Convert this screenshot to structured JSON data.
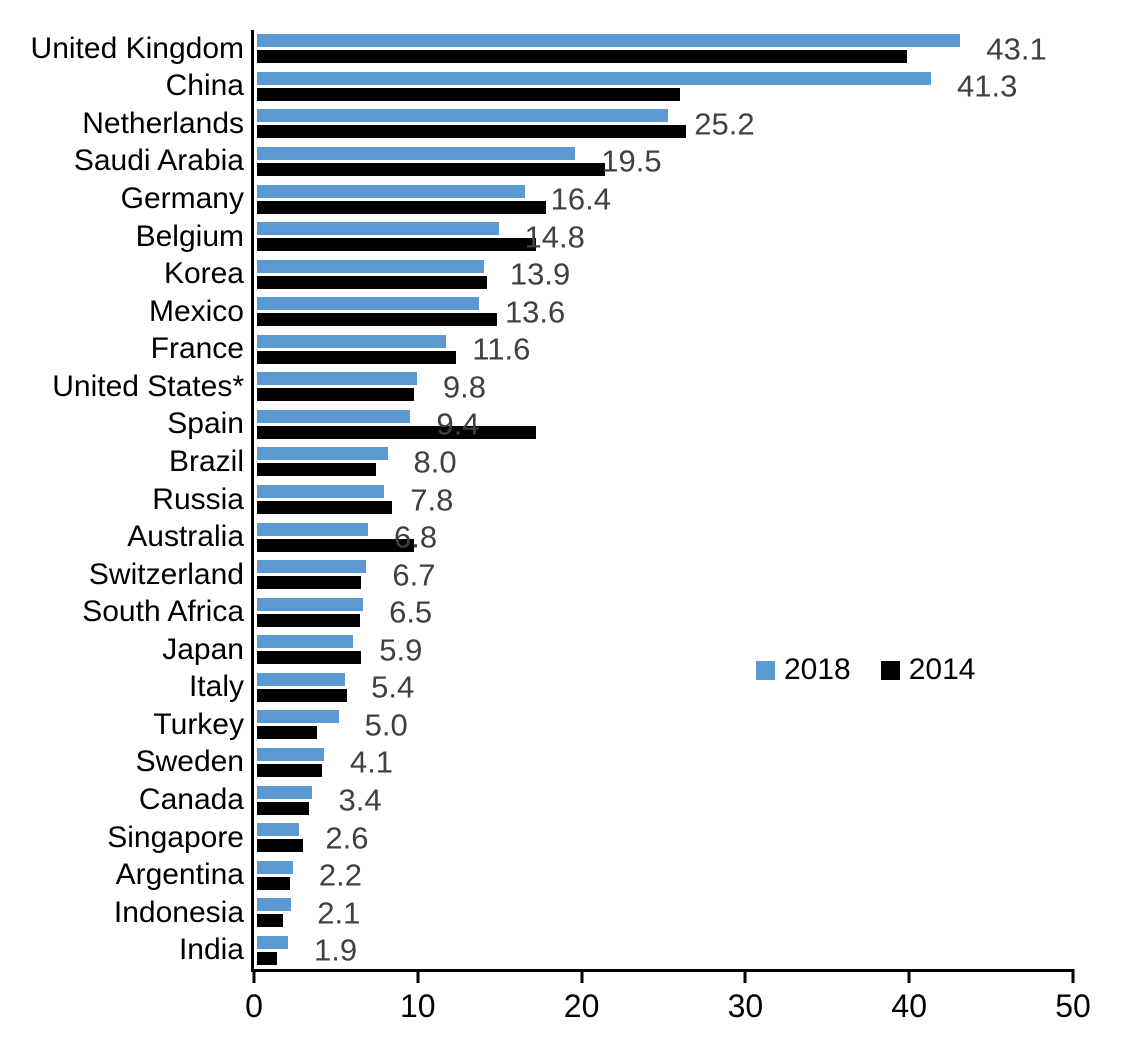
{
  "chart_data": {
    "type": "bar",
    "orientation": "horizontal",
    "title": "",
    "xlabel": "",
    "ylabel": "",
    "xlim": [
      0,
      50
    ],
    "x_ticks": [
      "0",
      "10",
      "20",
      "30",
      "40",
      "50"
    ],
    "grid": false,
    "legend_position": "middle-right",
    "categories": [
      "United Kingdom",
      "China",
      "Netherlands",
      "Saudi Arabia",
      "Germany",
      "Belgium",
      "Korea",
      "Mexico",
      "France",
      "United States*",
      "Spain",
      "Brazil",
      "Russia",
      "Australia",
      "Switzerland",
      "South Africa",
      "Japan",
      "Italy",
      "Turkey",
      "Sweden",
      "Canada",
      "Singapore",
      "Argentina",
      "Indonesia",
      "India"
    ],
    "series": [
      {
        "name": "2018",
        "color": "#5B99D3",
        "values": [
          43.1,
          41.3,
          25.2,
          19.5,
          16.4,
          14.8,
          13.9,
          13.6,
          11.6,
          9.8,
          9.4,
          8.0,
          7.8,
          6.8,
          6.7,
          6.5,
          5.9,
          5.4,
          5.0,
          4.1,
          3.4,
          2.6,
          2.2,
          2.1,
          1.9
        ]
      },
      {
        "name": "2014",
        "color": "#000000",
        "values": [
          39.8,
          25.9,
          26.3,
          21.3,
          17.7,
          17.1,
          14.1,
          14.7,
          12.2,
          9.6,
          17.1,
          7.3,
          8.3,
          9.6,
          6.4,
          6.3,
          6.4,
          5.5,
          3.7,
          4.0,
          3.2,
          2.8,
          2.0,
          1.6,
          1.2
        ]
      }
    ],
    "value_labels": [
      "43.1",
      "41.3",
      "25.2",
      "19.5",
      "16.4",
      "14.8",
      "13.9",
      "13.6",
      "11.6",
      "9.8",
      "9.4",
      "8.0",
      "7.8",
      "6.8",
      "6.7",
      "6.5",
      "5.9",
      "5.4",
      "5.0",
      "4.1",
      "3.4",
      "2.6",
      "2.2",
      "2.1",
      "1.9"
    ],
    "value_label_series": "2018",
    "value_label_color": "#404040"
  }
}
